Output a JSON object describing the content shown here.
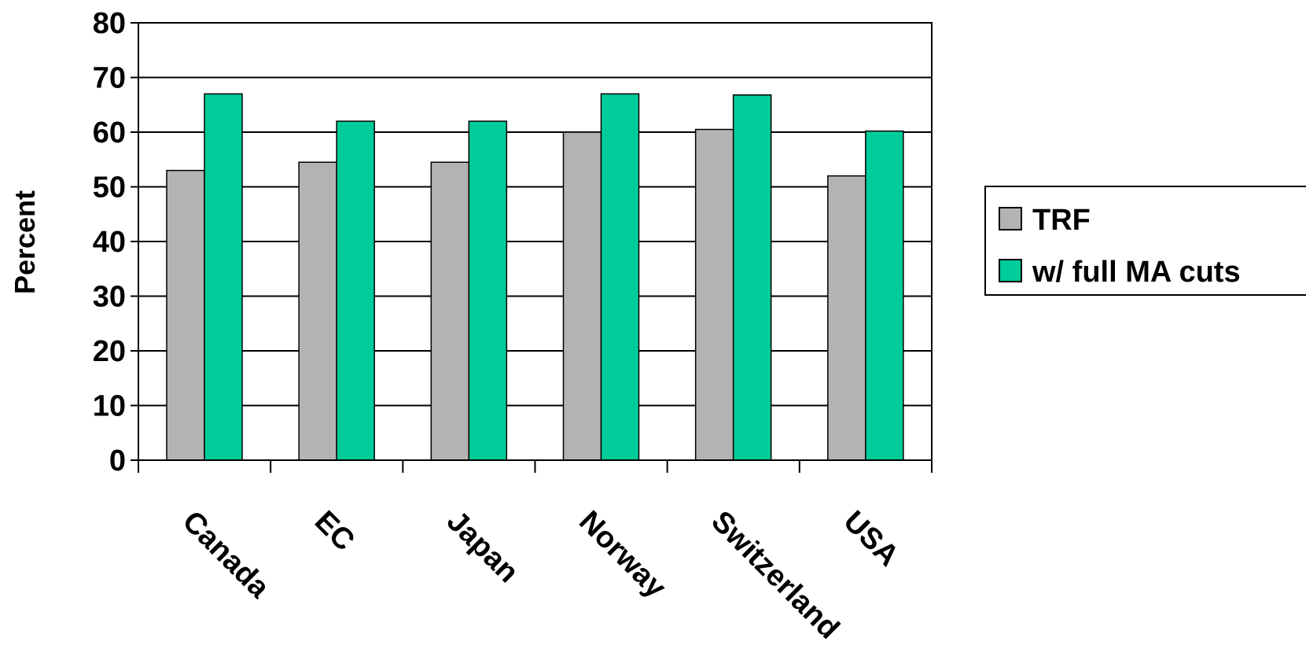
{
  "colors": {
    "background": "#ffffff",
    "trf": "#b3b3b3",
    "ma_cuts": "#00cc99",
    "outline": "#000000"
  },
  "chart_data": {
    "type": "bar",
    "categories": [
      "Canada",
      "EC",
      "Japan",
      "Norway",
      "Switzerland",
      "USA"
    ],
    "series": [
      {
        "name": "TRF",
        "values": [
          53,
          54.5,
          54.5,
          60,
          60.5,
          52
        ]
      },
      {
        "name": "w/ full MA cuts",
        "values": [
          67,
          62,
          62,
          67,
          66.8,
          60.2
        ]
      }
    ],
    "title": "",
    "xlabel": "",
    "ylabel": "Percent",
    "ylim": [
      0,
      80
    ],
    "yticks": [
      0,
      10,
      20,
      30,
      40,
      50,
      60,
      70,
      80
    ],
    "grid": true,
    "legend_position": "right"
  }
}
